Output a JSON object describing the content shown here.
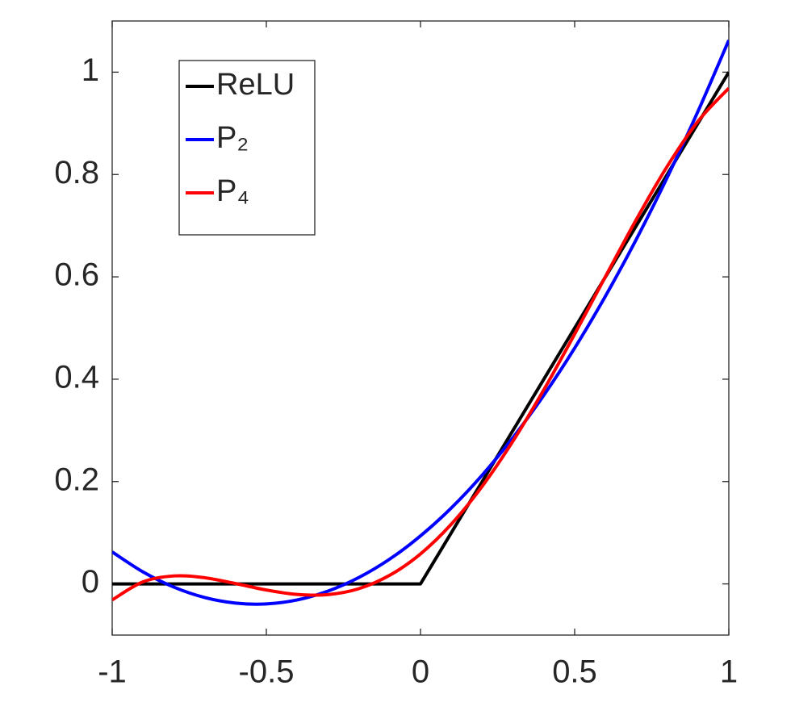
{
  "chart_data": {
    "type": "line",
    "x": [
      -1,
      -0.9,
      -0.8,
      -0.7,
      -0.6,
      -0.5,
      -0.4,
      -0.3,
      -0.2,
      -0.1,
      0,
      0.1,
      0.2,
      0.3,
      0.4,
      0.5,
      0.6,
      0.7,
      0.8,
      0.9,
      1
    ],
    "series": [
      {
        "name": "ReLU",
        "color": "#000000",
        "values": [
          0,
          0,
          0,
          0,
          0,
          0,
          0,
          0,
          0,
          0,
          0,
          0.1,
          0.2,
          0.3,
          0.4,
          0.5,
          0.6,
          0.7,
          0.8,
          0.9,
          1
        ]
      },
      {
        "name": "P₂",
        "color": "#0000ff",
        "values": [
          0.0625,
          0.0234,
          -0.0063,
          -0.0266,
          -0.0375,
          -0.0391,
          -0.0313,
          -0.0141,
          0.0125,
          0.0484,
          0.0938,
          0.1484,
          0.2125,
          0.2859,
          0.3688,
          0.4609,
          0.5625,
          0.6734,
          0.7938,
          0.9234,
          1.0625
        ]
      },
      {
        "name": "P₄",
        "color": "#ff0000",
        "values": [
          -0.0313,
          0.004,
          0.0156,
          0.0121,
          0.0007,
          -0.0119,
          -0.0206,
          -0.0209,
          -0.0093,
          0.0168,
          0.0586,
          0.1168,
          0.1907,
          0.2791,
          0.3794,
          0.4881,
          0.6007,
          0.7121,
          0.8156,
          0.904,
          0.9687
        ]
      }
    ],
    "xlim": [
      -1,
      1
    ],
    "ylim": [
      -0.1,
      1.1
    ],
    "xticks": [
      -1,
      -0.5,
      0,
      0.5,
      1
    ],
    "yticks": [
      0,
      0.2,
      0.4,
      0.6,
      0.8,
      1
    ],
    "grid": false,
    "legend": "upper left"
  }
}
